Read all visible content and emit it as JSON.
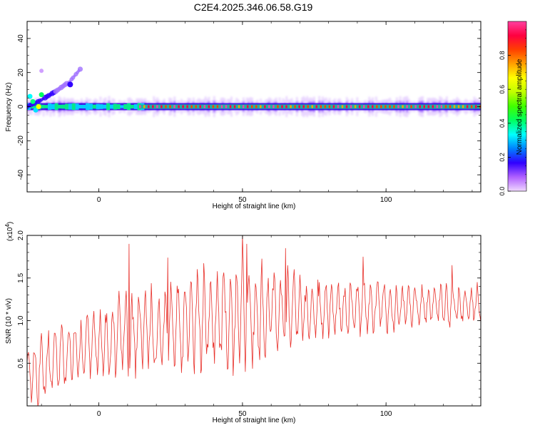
{
  "title": "C2E4.2025.346.06.58.G19",
  "spectrogram": {
    "type": "heatmap",
    "xlabel": "Height of straight line (km)",
    "ylabel": "Frequency (Hz)",
    "xlim": [
      -25,
      133
    ],
    "ylim": [
      -50,
      50
    ],
    "xticks": [
      0,
      50,
      100
    ],
    "yticks": [
      40,
      20,
      0,
      -20,
      -40
    ],
    "colorbar": {
      "label": "Normalized spectral amplitude",
      "range": [
        0,
        1
      ],
      "ticks": [
        "0.0",
        "0.2",
        "0.4",
        "0.6",
        "0.8"
      ],
      "colors": [
        "#f0d8ff",
        "#b060ff",
        "#3000ff",
        "#0080ff",
        "#00ffff",
        "#00ff60",
        "#40ff00",
        "#c0ff00",
        "#ffff00",
        "#ffa000",
        "#ff4000",
        "#ff0040",
        "#ff40a0"
      ]
    },
    "features": {
      "main_line_hz": 0,
      "main_line_x_range": [
        -25,
        133
      ],
      "diagonal_trace": [
        [
          -25,
          0
        ],
        [
          -20,
          4
        ],
        [
          -15,
          9
        ],
        [
          -10,
          15
        ],
        [
          -6,
          23
        ]
      ]
    }
  },
  "snr_chart": {
    "type": "line",
    "xlabel": "Height of straight line (km)",
    "ylabel": "SNR (10 * v/v)",
    "exponent_label": "(x10",
    "exponent_power": "4",
    "exponent_close": ")",
    "xlim": [
      -25,
      133
    ],
    "ylim": [
      0,
      2.0
    ],
    "xticks": [
      0,
      50,
      100
    ],
    "yticks": [
      "0.5",
      "1.0",
      "1.5",
      "2.0"
    ],
    "ytick_values": [
      0.5,
      1.0,
      1.5,
      2.0
    ],
    "color": "#e8302a",
    "x": [
      -25,
      -20,
      -15,
      -10,
      -5,
      0,
      5,
      10,
      15,
      20,
      25,
      30,
      35,
      40,
      45,
      50,
      55,
      60,
      65,
      70,
      75,
      80,
      85,
      90,
      95,
      100,
      105,
      110,
      115,
      120,
      125,
      130,
      133
    ],
    "mean": [
      0.38,
      0.45,
      0.52,
      0.62,
      0.68,
      0.74,
      0.8,
      0.85,
      0.88,
      0.9,
      0.93,
      0.97,
      1.0,
      1.03,
      1.05,
      1.07,
      1.08,
      1.1,
      1.1,
      1.12,
      1.12,
      1.13,
      1.14,
      1.15,
      1.15,
      1.16,
      1.16,
      1.17,
      1.18,
      1.18,
      1.18,
      1.19,
      1.19
    ],
    "amplitude": [
      0.42,
      0.45,
      0.42,
      0.38,
      0.4,
      0.42,
      0.48,
      0.52,
      0.5,
      0.5,
      0.52,
      0.55,
      0.58,
      0.6,
      0.62,
      0.62,
      0.58,
      0.55,
      0.5,
      0.48,
      0.4,
      0.38,
      0.36,
      0.34,
      0.3,
      0.28,
      0.28,
      0.26,
      0.25,
      0.24,
      0.24,
      0.22,
      0.22
    ],
    "peaks": [
      [
        10.5,
        1.9
      ],
      [
        50,
        2.0
      ],
      [
        51.5,
        1.9
      ],
      [
        24,
        1.74
      ],
      [
        65,
        1.85
      ],
      [
        92,
        1.75
      ],
      [
        123,
        1.65
      ]
    ]
  }
}
